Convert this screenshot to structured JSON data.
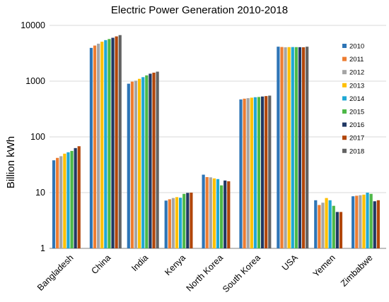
{
  "chart_data": {
    "type": "bar",
    "title": "Electric Power Generation 2010-2018",
    "ylabel": "Billion kWh",
    "xlabel": "",
    "yscale": "log",
    "ylim": [
      1,
      10000
    ],
    "yticks": [
      "1",
      "10",
      "100",
      "1000",
      "10000"
    ],
    "grid": "horizontal",
    "legend_position": "right",
    "categories": [
      "Bangladesh",
      "China",
      "India",
      "Kenya",
      "North Korea",
      "South Korea",
      "USA",
      "Yemen",
      "Zimbabwe"
    ],
    "series": [
      {
        "name": "2010",
        "color": "#2e75b6",
        "values": [
          38,
          3950,
          900,
          7.2,
          21,
          470,
          4150,
          7.3,
          8.6
        ]
      },
      {
        "name": "2011",
        "color": "#ed7d31",
        "values": [
          42,
          4350,
          980,
          7.6,
          19,
          485,
          4100,
          6.0,
          8.8
        ]
      },
      {
        "name": "2012",
        "color": "#a5a5a5",
        "values": [
          45,
          4700,
          1020,
          8.0,
          18.8,
          495,
          4050,
          6.6,
          9.0
        ]
      },
      {
        "name": "2013",
        "color": "#ffc000",
        "values": [
          50,
          5100,
          1100,
          8.3,
          18,
          505,
          4080,
          8.0,
          9.2
        ]
      },
      {
        "name": "2014",
        "color": "#1fa8d4",
        "values": [
          53,
          5450,
          1180,
          8.1,
          17.5,
          515,
          4090,
          7.3,
          10.0
        ]
      },
      {
        "name": "2015",
        "color": "#4db848",
        "values": [
          56,
          5700,
          1270,
          9.5,
          13.5,
          520,
          4080,
          5.8,
          9.5
        ]
      },
      {
        "name": "2016",
        "color": "#203864",
        "values": [
          63,
          6000,
          1360,
          9.9,
          16.5,
          530,
          4070,
          4.5,
          7.0
        ]
      },
      {
        "name": "2017",
        "color": "#b1460a",
        "values": [
          68,
          6350,
          1420,
          10.0,
          16,
          540,
          4050,
          4.5,
          7.3
        ]
      },
      {
        "name": "2018",
        "color": "#636363",
        "values": [
          null,
          6700,
          1480,
          null,
          null,
          550,
          4150,
          null,
          null
        ]
      }
    ]
  }
}
